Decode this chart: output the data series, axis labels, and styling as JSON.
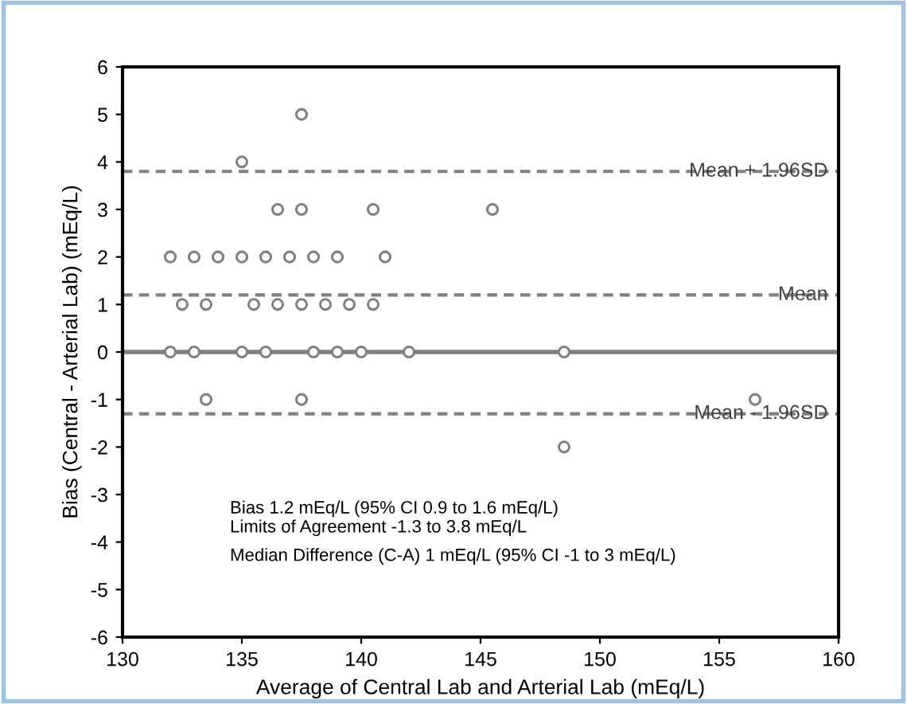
{
  "chart_data": {
    "type": "scatter",
    "xlabel": "Average of Central Lab and Arterial Lab (mEq/L)",
    "ylabel": "Bias (Central - Arterial Lab) (mEq/L)",
    "x": [
      132,
      133,
      134,
      135,
      136,
      137,
      138,
      139,
      141,
      132.5,
      133.5,
      135.5,
      136.5,
      137.5,
      138.5,
      139.5,
      140.5,
      132,
      133,
      135,
      136,
      138,
      139,
      140,
      142,
      148.5,
      136.5,
      137.5,
      140.5,
      145.5,
      135,
      137.5,
      133.5,
      137.5,
      156.5,
      148.5
    ],
    "values": [
      2,
      2,
      2,
      2,
      2,
      2,
      2,
      2,
      2,
      1,
      1,
      1,
      1,
      1,
      1,
      1,
      1,
      0,
      0,
      0,
      0,
      0,
      0,
      0,
      0,
      0,
      3,
      3,
      3,
      3,
      4,
      5,
      -1,
      -1,
      -1,
      -2
    ],
    "color": "#808080",
    "marker": "circle",
    "xlim": [
      130,
      160
    ],
    "xticks": [
      130,
      135,
      140,
      145,
      150,
      155,
      160
    ],
    "ylim": [
      -6,
      6
    ],
    "yticks": [
      -6,
      -5,
      -4,
      -3,
      -2,
      -1,
      0,
      1,
      2,
      3,
      4,
      5,
      6
    ],
    "grid": false,
    "ref_lines": [
      {
        "axis": "y",
        "value": 0,
        "label": null,
        "color": "#808080",
        "line_style": "solid"
      },
      {
        "axis": "y",
        "value": 3.8,
        "label": "Mean + 1.96SD",
        "color": "#808080",
        "line_style": "dashed"
      },
      {
        "axis": "y",
        "value": 1.2,
        "label": "Mean",
        "color": "#808080",
        "line_style": "dashed"
      },
      {
        "axis": "y",
        "value": -1.3,
        "label": "Mean - 1.96SD",
        "color": "#808080",
        "line_style": "dashed"
      }
    ],
    "annotations": [
      "Bias 1.2 mEq/L (95% CI 0.9 to 1.6 mEq/L)",
      "Limits of Agreement -1.3 to 3.8 mEq/L",
      "Median Difference (C-A) 1 mEq/L (95% CI -1 to 3 mEq/L)"
    ]
  }
}
